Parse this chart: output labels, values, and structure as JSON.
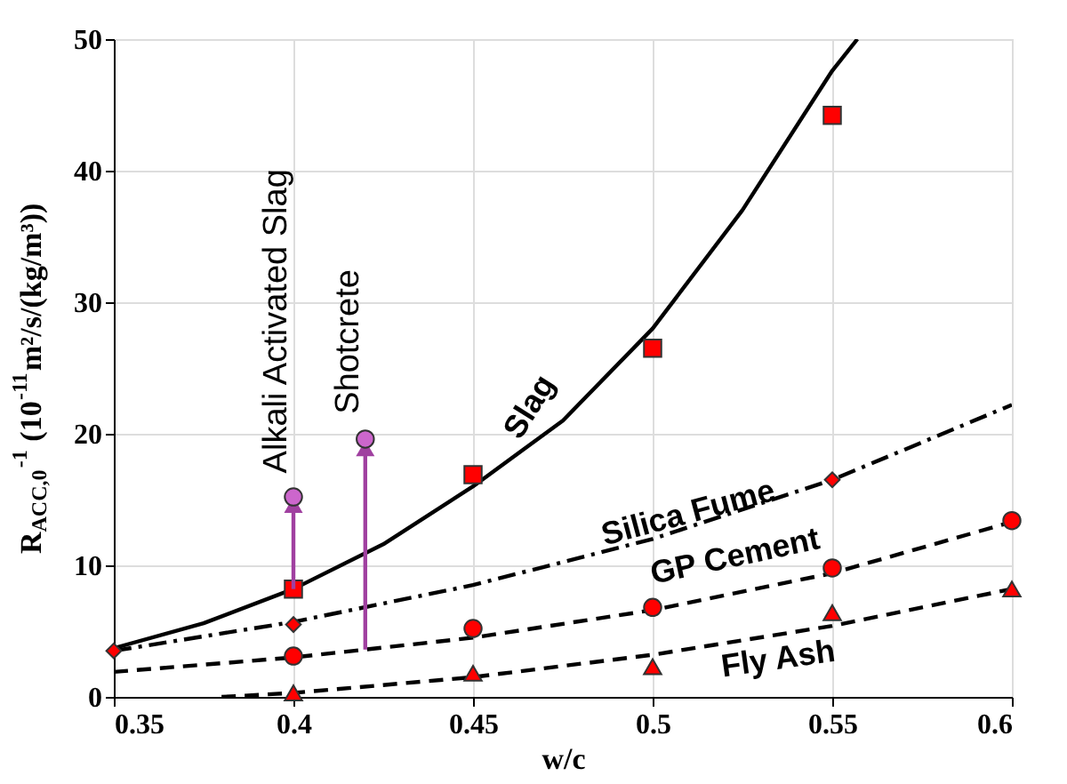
{
  "chart_data": {
    "type": "line",
    "xlabel": "w/c",
    "ylabel": "R$_{ACC,0}$$^{-1}$ (10$^{-11}$m²/s/(kg/m³))",
    "xlim": [
      0.35,
      0.6
    ],
    "xticks": [
      0.35,
      0.4,
      0.45,
      0.5,
      0.55,
      0.6
    ],
    "ylim": [
      0,
      50
    ],
    "yticks": [
      0,
      10,
      20,
      30,
      40,
      50
    ],
    "grid": true,
    "legend": false,
    "series": [
      {
        "name": "Slag",
        "color": "#000000",
        "line_style": "solid",
        "marker": "none",
        "x": [
          0.35,
          0.375,
          0.4,
          0.425,
          0.45,
          0.475,
          0.5,
          0.525,
          0.55,
          0.557
        ],
        "values": [
          3.7,
          5.6,
          8.2,
          11.6,
          16.0,
          21.0,
          28.0,
          37.0,
          47.6,
          50.0
        ]
      },
      {
        "type": "scatter",
        "color": "#ff0000",
        "marker": "square",
        "x": [
          0.4,
          0.45,
          0.5,
          0.55
        ],
        "values": [
          8.2,
          16.9,
          26.5,
          44.2
        ]
      },
      {
        "name": "Silica Fume",
        "color": "#000000",
        "line_style": "dotted",
        "marker": "none",
        "x": [
          0.35,
          0.4,
          0.45,
          0.5,
          0.55,
          0.6
        ],
        "values": [
          3.5,
          5.7,
          8.5,
          12.0,
          16.5,
          22.2
        ]
      },
      {
        "type": "scatter",
        "color": "#ff0000",
        "marker": "diamond",
        "x": [
          0.35,
          0.4,
          0.55
        ],
        "values": [
          3.5,
          5.5,
          16.5
        ]
      },
      {
        "name": "GP Cement",
        "color": "#000000",
        "line_style": "dashed",
        "marker": "none",
        "x": [
          0.35,
          0.4,
          0.45,
          0.5,
          0.55,
          0.6
        ],
        "values": [
          1.9,
          3.0,
          4.5,
          6.6,
          9.4,
          13.3
        ]
      },
      {
        "type": "scatter",
        "color": "#ff0000",
        "marker": "circle",
        "x": [
          0.4,
          0.45,
          0.5,
          0.55,
          0.6
        ],
        "values": [
          3.1,
          5.2,
          6.8,
          9.8,
          13.4
        ]
      },
      {
        "name": "Fly Ash",
        "color": "#000000",
        "line_style": "dashed",
        "marker": "none",
        "x": [
          0.38,
          0.4,
          0.45,
          0.5,
          0.55,
          0.6
        ],
        "values": [
          0.0,
          0.3,
          1.5,
          3.2,
          5.4,
          8.2
        ]
      },
      {
        "type": "scatter",
        "color": "#ff0000",
        "marker": "triangle",
        "x": [
          0.4,
          0.45,
          0.5,
          0.55,
          0.6
        ],
        "values": [
          0.3,
          1.8,
          2.3,
          6.4,
          8.2
        ]
      },
      {
        "type": "line",
        "color": "#a040a0",
        "line_style": "solid",
        "x": [
          0.4,
          0.4
        ],
        "values": [
          8.2,
          14.6
        ]
      },
      {
        "name": "Alkali Activated Slag",
        "type": "scatter",
        "color": "#cc66cc",
        "marker": "circle",
        "x": [
          0.4
        ],
        "values": [
          15.2
        ]
      },
      {
        "type": "line",
        "color": "#a040a0",
        "line_style": "solid",
        "x": [
          0.42,
          0.42
        ],
        "values": [
          3.6,
          18.9
        ]
      },
      {
        "name": "Shotcrete",
        "type": "scatter",
        "color": "#cc66cc",
        "marker": "circle",
        "x": [
          0.42
        ],
        "values": [
          19.6
        ]
      }
    ]
  }
}
